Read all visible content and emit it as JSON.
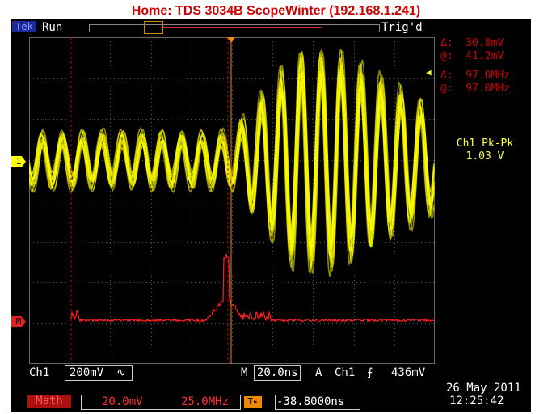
{
  "title": "Home:  TDS 3034B  ScopeWinter  (192.168.1.241)",
  "topbar": {
    "brand": "Tek",
    "run_state": "Run",
    "trigger_status": "Trig'd"
  },
  "cursors": {
    "volt_delta": "Δ:  30.8mV",
    "volt_at": "@:  41.2mV",
    "freq_delta": "Δ:  97.0MHz",
    "freq_at": "@:  97.0MHz"
  },
  "measurement": {
    "label": "Ch1 Pk-Pk",
    "value": "1.03 V"
  },
  "markers": {
    "ch1": "1",
    "math": "M",
    "cursor_arrow": "◀"
  },
  "status_bar": {
    "ch1_label": "Ch1",
    "ch1_scale": "200mV",
    "ch1_coupling": "∿",
    "timebase_label": "M",
    "timebase": "20.0ns",
    "trigger_mode": "A",
    "trigger_source": "Ch1",
    "trigger_slope": "⨍",
    "trigger_level": "436mV"
  },
  "math_bar": {
    "label": "Math",
    "vertical_scale": "20.0mV",
    "horizontal_scale": "25.0MHz",
    "trig_pos_icon": "T▸",
    "trigger_position": "-38.8000ns"
  },
  "datetime": {
    "date": "26 May 2011",
    "time": "12:25:42"
  },
  "colors": {
    "ch1_trace": "#ffff00",
    "math_trace": "#ff2020",
    "cursor": "#cc0000",
    "trigger_marker": "#ee8800"
  }
}
